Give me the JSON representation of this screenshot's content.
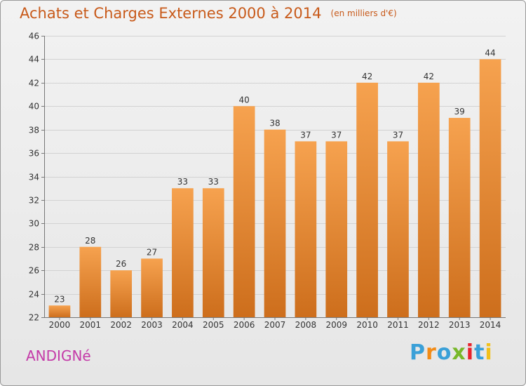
{
  "header": {
    "title": "Achats et Charges Externes 2000 à 2014",
    "unit": "(en milliers d'€)"
  },
  "footer": {
    "commune": "ANDIGNé",
    "logo": "Proxiti"
  },
  "colors": {
    "bar_light": "#f6a24f",
    "bar_dark": "#cd6e1c",
    "title": "#c85a1a",
    "commune": "#c43aa8",
    "logo": [
      "#3aa0d8",
      "#f28b16",
      "#3aa0d8",
      "#78b82a",
      "#e8222b",
      "#3aa0d8",
      "#f2c018"
    ]
  },
  "chart_data": {
    "type": "bar",
    "categories": [
      "2000",
      "2001",
      "2002",
      "2003",
      "2004",
      "2005",
      "2006",
      "2007",
      "2008",
      "2009",
      "2010",
      "2011",
      "2012",
      "2013",
      "2014"
    ],
    "values": [
      23,
      28,
      26,
      27,
      33,
      33,
      40,
      38,
      37,
      37,
      42,
      37,
      42,
      39,
      44
    ],
    "title": "Achats et Charges Externes 2000 à 2014",
    "xlabel": "",
    "ylabel": "",
    "ylim": [
      22,
      46
    ],
    "yticks": [
      22,
      24,
      26,
      28,
      30,
      32,
      34,
      36,
      38,
      40,
      42,
      44,
      46
    ],
    "grid": true,
    "data_labels": true
  }
}
